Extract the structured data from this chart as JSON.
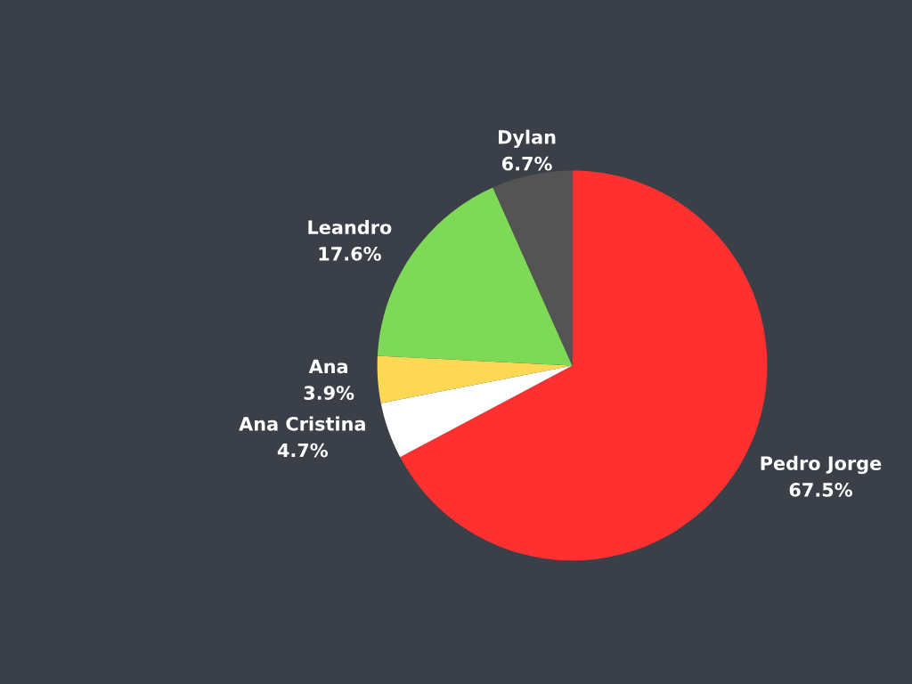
{
  "chart_data": {
    "type": "pie",
    "categories": [
      "Pedro Jorge",
      "Ana Cristina",
      "Ana",
      "Leandro",
      "Dylan"
    ],
    "values": [
      67.5,
      4.7,
      3.9,
      17.6,
      6.7
    ],
    "value_labels": [
      "67.5%",
      "4.7%",
      "3.9%",
      "17.6%",
      "6.7%"
    ],
    "colors": [
      "#fe3130",
      "#ffffff",
      "#fdd855",
      "#7ed957",
      "#545454"
    ]
  }
}
